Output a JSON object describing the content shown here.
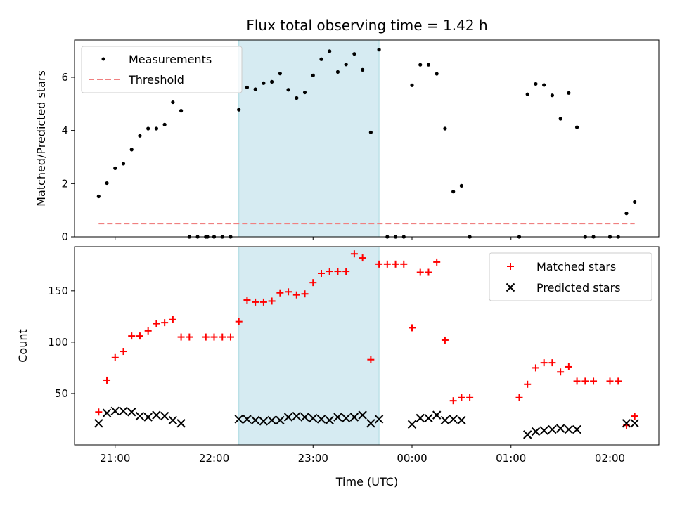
{
  "chart_data": {
    "type": "scatter",
    "title": "Flux total observing time = 1.42 h",
    "xlabel": "Time (UTC)",
    "x_tick_labels": [
      "21:00",
      "22:00",
      "23:00",
      "00:00",
      "01:00",
      "02:00"
    ],
    "shaded_interval": [
      "22:15",
      "23:40"
    ],
    "shade_color": "#add8e6",
    "panels": [
      {
        "ylabel": "Matched/Predicted stars",
        "ylim": [
          0,
          7.4
        ],
        "y_ticks": [
          0,
          2,
          4,
          6
        ],
        "legend_position": "top-left",
        "series": [
          {
            "name": "Measurements",
            "marker": "dot",
            "color": "#000000",
            "points": [
              [
                "20:50",
                1.52
              ],
              [
                "20:55",
                2.02
              ],
              [
                "21:00",
                2.58
              ],
              [
                "21:05",
                2.75
              ],
              [
                "21:10",
                3.28
              ],
              [
                "21:15",
                3.8
              ],
              [
                "21:20",
                4.07
              ],
              [
                "21:25",
                4.07
              ],
              [
                "21:30",
                4.22
              ],
              [
                "21:35",
                5.06
              ],
              [
                "21:40",
                4.74
              ],
              [
                "21:45",
                0
              ],
              [
                "21:50",
                0
              ],
              [
                "21:55",
                0
              ],
              [
                "21:56",
                0
              ],
              [
                "22:00",
                0
              ],
              [
                "22:05",
                0
              ],
              [
                "22:10",
                0
              ],
              [
                "22:15",
                4.78
              ],
              [
                "22:20",
                5.62
              ],
              [
                "22:25",
                5.55
              ],
              [
                "22:30",
                5.78
              ],
              [
                "22:35",
                5.83
              ],
              [
                "22:40",
                6.14
              ],
              [
                "22:45",
                5.53
              ],
              [
                "22:50",
                5.22
              ],
              [
                "22:55",
                5.43
              ],
              [
                "23:00",
                6.07
              ],
              [
                "23:05",
                6.68
              ],
              [
                "23:10",
                6.98
              ],
              [
                "23:15",
                6.2
              ],
              [
                "23:20",
                6.48
              ],
              [
                "23:25",
                6.88
              ],
              [
                "23:30",
                6.28
              ],
              [
                "23:35",
                3.93
              ],
              [
                "23:40",
                7.04
              ],
              [
                "23:45",
                0
              ],
              [
                "23:50",
                0
              ],
              [
                "23:55",
                0
              ],
              [
                "00:00",
                5.7
              ],
              [
                "00:05",
                6.47
              ],
              [
                "00:10",
                6.47
              ],
              [
                "00:15",
                6.13
              ],
              [
                "00:20",
                4.07
              ],
              [
                "00:25",
                1.7
              ],
              [
                "00:30",
                1.92
              ],
              [
                "00:35",
                0
              ],
              [
                "01:05",
                0
              ],
              [
                "01:10",
                5.36
              ],
              [
                "01:15",
                5.75
              ],
              [
                "01:20",
                5.71
              ],
              [
                "01:25",
                5.32
              ],
              [
                "01:30",
                4.44
              ],
              [
                "01:35",
                5.41
              ],
              [
                "01:40",
                4.12
              ],
              [
                "01:45",
                0
              ],
              [
                "01:50",
                0
              ],
              [
                "02:00",
                0
              ],
              [
                "02:05",
                0
              ],
              [
                "02:10",
                0.88
              ],
              [
                "02:15",
                1.31
              ]
            ]
          },
          {
            "name": "Threshold",
            "line_style": "dashed",
            "color": "#f08080",
            "points": [
              [
                "20:50",
                0.5
              ],
              [
                "02:15",
                0.5
              ]
            ]
          }
        ]
      },
      {
        "ylabel": "Count",
        "ylim": [
          0,
          193
        ],
        "y_ticks": [
          50,
          100,
          150
        ],
        "legend_position": "top-right",
        "series": [
          {
            "name": "Matched stars",
            "marker": "plus",
            "color": "#ff0000",
            "points": [
              [
                "20:50",
                32
              ],
              [
                "20:55",
                63
              ],
              [
                "21:00",
                85
              ],
              [
                "21:05",
                91
              ],
              [
                "21:10",
                106
              ],
              [
                "21:15",
                106
              ],
              [
                "21:20",
                111
              ],
              [
                "21:25",
                118
              ],
              [
                "21:30",
                119
              ],
              [
                "21:35",
                122
              ],
              [
                "21:40",
                105
              ],
              [
                "21:45",
                105
              ],
              [
                "21:55",
                105
              ],
              [
                "22:00",
                105
              ],
              [
                "22:05",
                105
              ],
              [
                "22:10",
                105
              ],
              [
                "22:15",
                120
              ],
              [
                "22:20",
                141
              ],
              [
                "22:25",
                139
              ],
              [
                "22:30",
                139
              ],
              [
                "22:35",
                140
              ],
              [
                "22:40",
                148
              ],
              [
                "22:45",
                149
              ],
              [
                "22:50",
                146
              ],
              [
                "22:55",
                147
              ],
              [
                "23:00",
                158
              ],
              [
                "23:05",
                167
              ],
              [
                "23:10",
                169
              ],
              [
                "23:15",
                169
              ],
              [
                "23:20",
                169
              ],
              [
                "23:25",
                186
              ],
              [
                "23:30",
                182
              ],
              [
                "23:35",
                83
              ],
              [
                "23:40",
                176
              ],
              [
                "23:45",
                176
              ],
              [
                "23:50",
                176
              ],
              [
                "23:55",
                176
              ],
              [
                "00:00",
                114
              ],
              [
                "00:05",
                168
              ],
              [
                "00:10",
                168
              ],
              [
                "00:15",
                178
              ],
              [
                "00:20",
                102
              ],
              [
                "00:25",
                43
              ],
              [
                "00:30",
                46
              ],
              [
                "00:35",
                46
              ],
              [
                "01:05",
                46
              ],
              [
                "01:10",
                59
              ],
              [
                "01:15",
                75
              ],
              [
                "01:20",
                80
              ],
              [
                "01:25",
                80
              ],
              [
                "01:30",
                71
              ],
              [
                "01:35",
                76
              ],
              [
                "01:40",
                62
              ],
              [
                "01:45",
                62
              ],
              [
                "01:50",
                62
              ],
              [
                "02:00",
                62
              ],
              [
                "02:05",
                62
              ],
              [
                "02:10",
                19
              ],
              [
                "02:15",
                28
              ]
            ]
          },
          {
            "name": "Predicted stars",
            "marker": "x",
            "color": "#000000",
            "points": [
              [
                "20:50",
                21
              ],
              [
                "20:55",
                31
              ],
              [
                "21:00",
                33
              ],
              [
                "21:05",
                33
              ],
              [
                "21:10",
                32
              ],
              [
                "21:15",
                28
              ],
              [
                "21:20",
                27
              ],
              [
                "21:25",
                29
              ],
              [
                "21:30",
                28
              ],
              [
                "21:35",
                24
              ],
              [
                "21:40",
                21
              ],
              [
                "22:15",
                25
              ],
              [
                "22:20",
                25
              ],
              [
                "22:25",
                24
              ],
              [
                "22:30",
                23
              ],
              [
                "22:35",
                24
              ],
              [
                "22:40",
                24
              ],
              [
                "22:45",
                27
              ],
              [
                "22:50",
                28
              ],
              [
                "22:55",
                27
              ],
              [
                "23:00",
                26
              ],
              [
                "23:05",
                25
              ],
              [
                "23:10",
                24
              ],
              [
                "23:15",
                27
              ],
              [
                "23:20",
                26
              ],
              [
                "23:25",
                27
              ],
              [
                "23:30",
                29
              ],
              [
                "23:35",
                21
              ],
              [
                "23:40",
                25
              ],
              [
                "00:00",
                20
              ],
              [
                "00:05",
                26
              ],
              [
                "00:10",
                26
              ],
              [
                "00:15",
                29
              ],
              [
                "00:20",
                24
              ],
              [
                "00:25",
                25
              ],
              [
                "00:30",
                24
              ],
              [
                "01:10",
                10
              ],
              [
                "01:15",
                13
              ],
              [
                "01:20",
                14
              ],
              [
                "01:25",
                15
              ],
              [
                "01:30",
                16
              ],
              [
                "01:35",
                15
              ],
              [
                "01:40",
                15
              ],
              [
                "02:10",
                21
              ],
              [
                "02:15",
                21
              ]
            ]
          }
        ]
      }
    ]
  }
}
